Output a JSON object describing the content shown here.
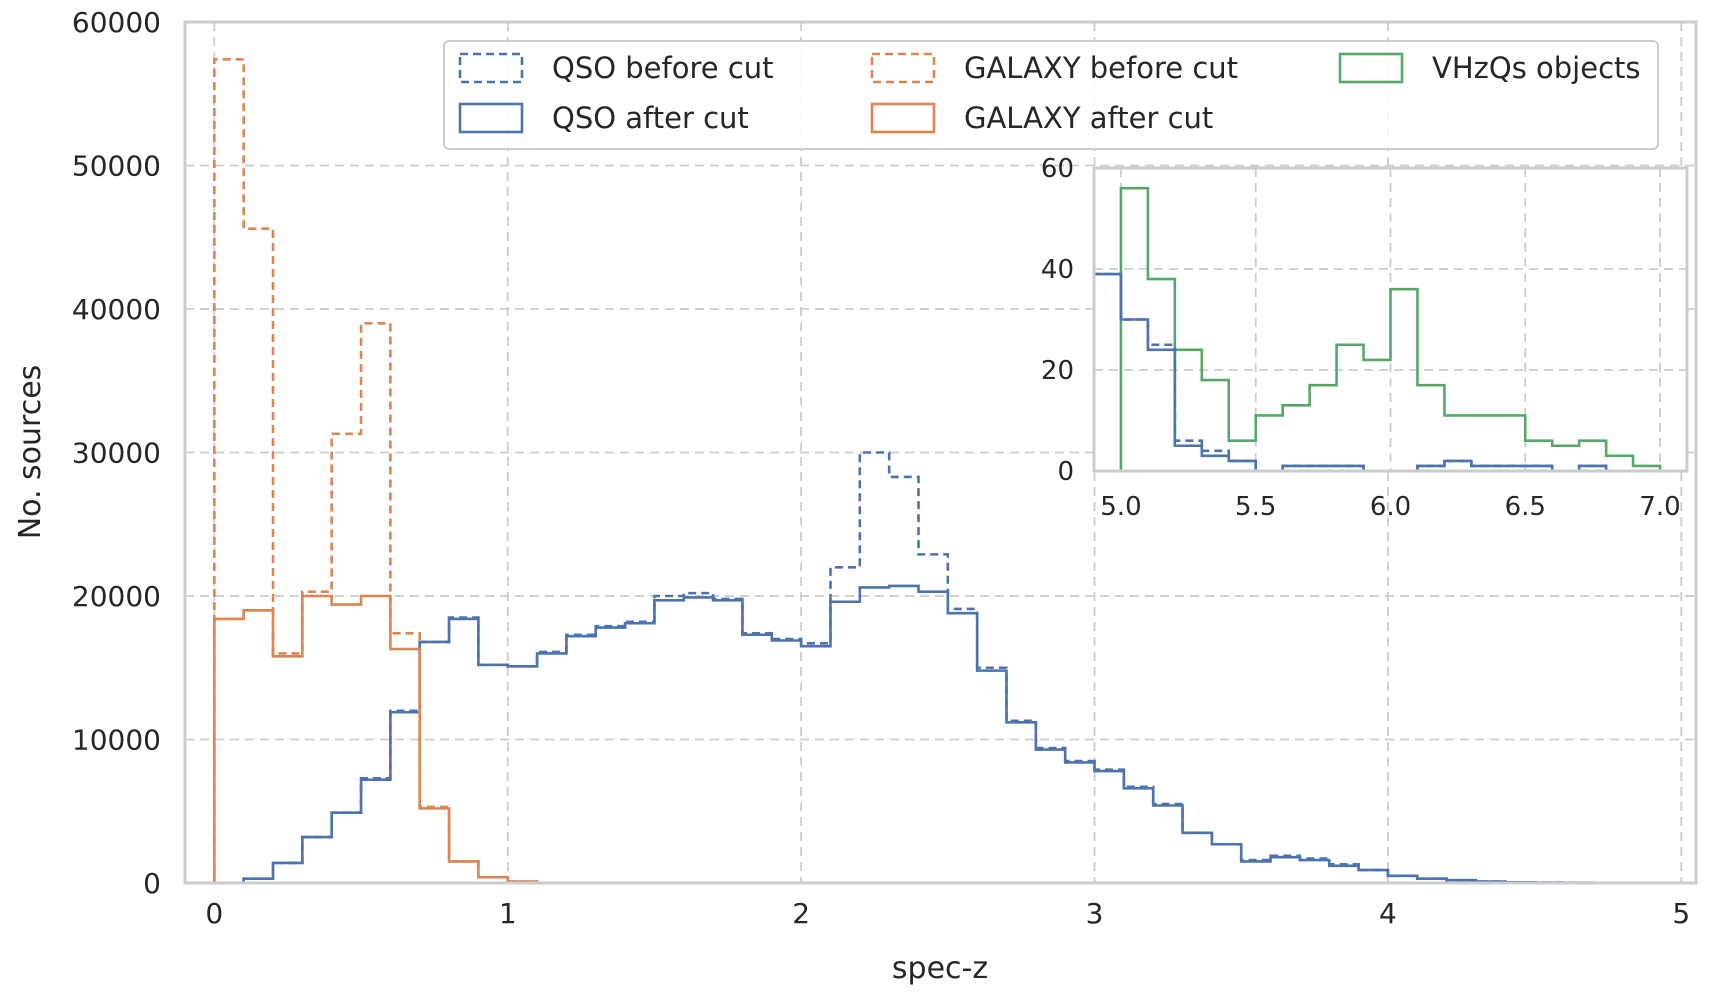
{
  "chart_data": {
    "type": "histogram",
    "xlabel": "spec-z",
    "ylabel": "No. sources",
    "xlim": [
      -0.1,
      5.05
    ],
    "ylim": [
      0,
      60000
    ],
    "xticks": [
      0,
      1,
      2,
      3,
      4,
      5
    ],
    "yticks": [
      0,
      10000,
      20000,
      30000,
      40000,
      50000,
      60000
    ],
    "grid": true,
    "legend_location": "top-right",
    "colors": {
      "qso": "#4c72b0",
      "galaxy": "#dd8452",
      "vhzq": "#55a868"
    },
    "series": [
      {
        "name": "QSO before cut",
        "style": "dashed",
        "color": "#4c72b0",
        "bin_edges": [
          0.1,
          0.2,
          0.3,
          0.4,
          0.5,
          0.6,
          0.7,
          0.8,
          0.9,
          1.0,
          1.1,
          1.2,
          1.3,
          1.4,
          1.5,
          1.6,
          1.7,
          1.8,
          1.9,
          2.0,
          2.1,
          2.2,
          2.3,
          2.4,
          2.5,
          2.6,
          2.7,
          2.8,
          2.9,
          3.0,
          3.1,
          3.2,
          3.3,
          3.4,
          3.5,
          3.6,
          3.7,
          3.8,
          3.9,
          4.0,
          4.1,
          4.2,
          4.3,
          4.4,
          4.5,
          4.6,
          4.7,
          4.8
        ],
        "counts": [
          300,
          1400,
          3200,
          4900,
          7300,
          12000,
          16800,
          18500,
          15200,
          15100,
          16100,
          17300,
          17900,
          18200,
          20000,
          20200,
          19800,
          17400,
          17000,
          16700,
          22000,
          30000,
          28300,
          22900,
          19100,
          15000,
          11300,
          9400,
          8500,
          7900,
          6700,
          5500,
          3500,
          2700,
          1600,
          1900,
          1700,
          1300,
          900,
          500,
          300,
          200,
          100,
          50,
          30,
          20,
          10
        ]
      },
      {
        "name": "QSO after cut",
        "style": "solid",
        "color": "#4c72b0",
        "bin_edges": [
          0.1,
          0.2,
          0.3,
          0.4,
          0.5,
          0.6,
          0.7,
          0.8,
          0.9,
          1.0,
          1.1,
          1.2,
          1.3,
          1.4,
          1.5,
          1.6,
          1.7,
          1.8,
          1.9,
          2.0,
          2.1,
          2.2,
          2.3,
          2.4,
          2.5,
          2.6,
          2.7,
          2.8,
          2.9,
          3.0,
          3.1,
          3.2,
          3.3,
          3.4,
          3.5,
          3.6,
          3.7,
          3.8,
          3.9,
          4.0,
          4.1,
          4.2,
          4.3,
          4.4,
          4.5,
          4.6,
          4.7,
          4.8
        ],
        "counts": [
          300,
          1400,
          3200,
          4900,
          7200,
          11900,
          16800,
          18400,
          15200,
          15100,
          16000,
          17200,
          17800,
          18100,
          19700,
          19900,
          19700,
          17300,
          16900,
          16500,
          19600,
          20600,
          20700,
          20300,
          18800,
          14800,
          11200,
          9300,
          8400,
          7800,
          6600,
          5400,
          3500,
          2700,
          1500,
          1800,
          1600,
          1200,
          900,
          500,
          300,
          200,
          100,
          50,
          30,
          20,
          10
        ]
      },
      {
        "name": "GALAXY before cut",
        "style": "dashed",
        "color": "#dd8452",
        "bin_edges": [
          0.0,
          0.1,
          0.2,
          0.3,
          0.4,
          0.5,
          0.6,
          0.7,
          0.8,
          0.9,
          1.0,
          1.1
        ],
        "counts": [
          57400,
          45600,
          16000,
          20300,
          31300,
          39000,
          17400,
          5300,
          1500,
          400,
          100
        ]
      },
      {
        "name": "GALAXY after cut",
        "style": "solid",
        "color": "#dd8452",
        "bin_edges": [
          0.0,
          0.1,
          0.2,
          0.3,
          0.4,
          0.5,
          0.6,
          0.7,
          0.8,
          0.9,
          1.0,
          1.1
        ],
        "counts": [
          18400,
          19000,
          15800,
          20000,
          19400,
          20000,
          16300,
          5200,
          1500,
          400,
          100
        ]
      },
      {
        "name": "VHzQs objects",
        "style": "solid",
        "color": "#55a868",
        "bin_edges": [],
        "counts": []
      }
    ],
    "inset": {
      "xlim": [
        4.9,
        7.1
      ],
      "ylim": [
        0,
        60
      ],
      "xticks": [
        5.0,
        5.5,
        6.0,
        6.5,
        7.0
      ],
      "xtick_labels": [
        "5.0",
        "5.5",
        "6.0",
        "6.5",
        "7.0"
      ],
      "yticks": [
        0,
        20,
        40,
        60
      ],
      "series": [
        {
          "name": "VHzQs objects",
          "style": "solid",
          "color": "#55a868",
          "bin_edges": [
            5.0,
            5.1,
            5.2,
            5.3,
            5.4,
            5.5,
            5.6,
            5.7,
            5.8,
            5.9,
            6.0,
            6.1,
            6.2,
            6.3,
            6.4,
            6.5,
            6.6,
            6.7,
            6.8,
            6.9,
            7.0
          ],
          "counts": [
            56,
            38,
            24,
            18,
            6,
            11,
            13,
            17,
            25,
            22,
            36,
            17,
            11,
            11,
            11,
            6,
            5,
            6,
            3,
            1
          ]
        },
        {
          "name": "QSO before cut",
          "style": "dashed",
          "color": "#4c72b0",
          "bin_edges": [
            4.9,
            5.0,
            5.1,
            5.2,
            5.3,
            5.4,
            5.5,
            5.6,
            5.7,
            5.8,
            5.9,
            6.0,
            6.1,
            6.2,
            6.3,
            6.4,
            6.5,
            6.6,
            6.7,
            6.8,
            6.9
          ],
          "counts": [
            39,
            30,
            25,
            6,
            4,
            2,
            0,
            1,
            1,
            1,
            0,
            0,
            1,
            2,
            1,
            1,
            1,
            0,
            1,
            0
          ]
        },
        {
          "name": "QSO after cut",
          "style": "solid",
          "color": "#4c72b0",
          "bin_edges": [
            4.9,
            5.0,
            5.1,
            5.2,
            5.3,
            5.4,
            5.5,
            5.6,
            5.7,
            5.8,
            5.9,
            6.0,
            6.1,
            6.2,
            6.3,
            6.4,
            6.5,
            6.6,
            6.7,
            6.8,
            6.9
          ],
          "counts": [
            39,
            30,
            24,
            5,
            3,
            2,
            0,
            1,
            1,
            1,
            0,
            0,
            1,
            2,
            1,
            1,
            1,
            0,
            1,
            0
          ]
        }
      ]
    }
  }
}
